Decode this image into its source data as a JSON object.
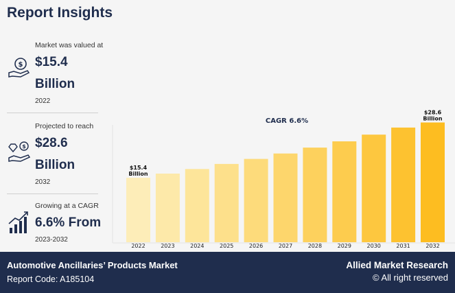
{
  "header": {
    "title": "Report Insights"
  },
  "stats": [
    {
      "label": "Market was valued at",
      "value_line1": "$15.4",
      "value_line2": "Billion",
      "year": "2022",
      "icon": "money-hand-icon"
    },
    {
      "label": "Projected to reach",
      "value_line1": "$28.6",
      "value_line2": "Billion",
      "year": "2032",
      "icon": "diamond-hand-icon"
    },
    {
      "label": "Growing at a CAGR",
      "value_line1": "6.6% From",
      "year": "2023-2032",
      "icon": "growth-chart-icon"
    }
  ],
  "chart_data": {
    "type": "bar",
    "categories": [
      "2022",
      "2023",
      "2024",
      "2025",
      "2026",
      "2027",
      "2028",
      "2029",
      "2030",
      "2031",
      "2032"
    ],
    "values": [
      15.4,
      16.4,
      17.5,
      18.7,
      19.9,
      21.2,
      22.6,
      24.1,
      25.7,
      27.4,
      28.6
    ],
    "annotation": "CAGR 6.6%",
    "data_labels": [
      {
        "index": 0,
        "line1": "$15.4",
        "line2": "Billion"
      },
      {
        "index": 10,
        "line1": "$28.6",
        "line2": "Billion"
      }
    ],
    "ylim": [
      0,
      30
    ],
    "grid": false,
    "colors": [
      "#fdedb8",
      "#fde9a9",
      "#fde59a",
      "#fde08b",
      "#fddb7b",
      "#fdd66c",
      "#fdd15d",
      "#fdcc4e",
      "#fdc73f",
      "#fdc230",
      "#fdbd21"
    ]
  },
  "footer": {
    "market_name": "Automotive Ancillaries’ Products Market",
    "report_code": "Report Code: A185104",
    "brand": "Allied Market Research",
    "rights": "© All right reserved"
  }
}
